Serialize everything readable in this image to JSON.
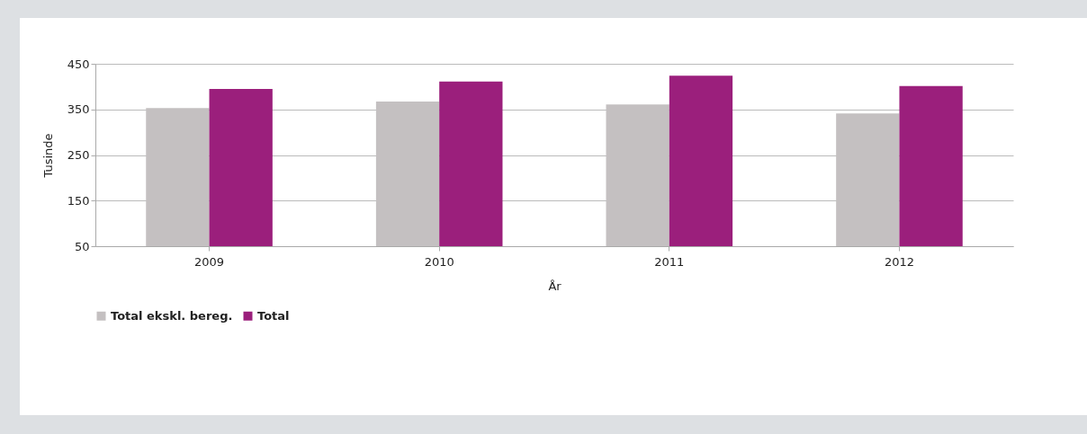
{
  "chart_data": {
    "type": "bar",
    "xlabel": "År",
    "ylabel": "Tusinde",
    "categories": [
      "2009",
      "2010",
      "2011",
      "2012"
    ],
    "series": [
      {
        "name": "Total ekskl. bereg.",
        "color": "#c4c0c1",
        "values": [
          353,
          367,
          361,
          341
        ]
      },
      {
        "name": "Total",
        "color": "#9b1f7c",
        "values": [
          395,
          411,
          424,
          401
        ]
      }
    ],
    "ylim": [
      50,
      450
    ],
    "yticks": [
      50,
      150,
      250,
      350,
      450
    ],
    "grid": "y",
    "legend": "bottom"
  }
}
